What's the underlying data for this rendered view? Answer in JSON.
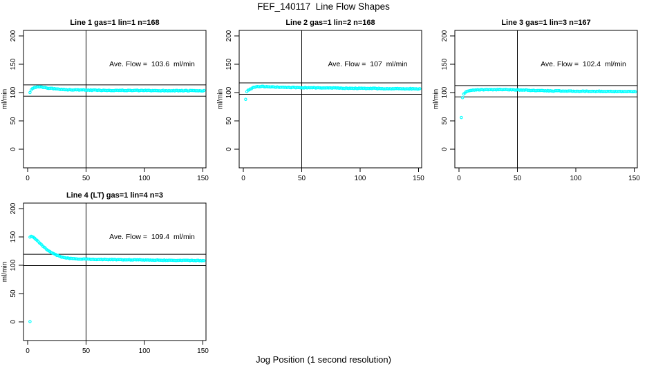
{
  "labels": {
    "title": "FEF_140117  Line Flow Shapes",
    "xlabel": "Jog Position (1 second resolution)",
    "ylabel": "ml/min"
  },
  "axes": {
    "x_ticks": [
      0,
      50,
      100,
      150
    ],
    "y_ticks": [
      0,
      50,
      100,
      150,
      200
    ],
    "xlim": [
      -3.5,
      152.5
    ],
    "ylim": [
      -33,
      210
    ],
    "vline_x": 50,
    "grid": false
  },
  "colors": {
    "marker": "#00ffff",
    "axis": "#000000",
    "background": "#ffffff",
    "text": "#000000"
  },
  "chart_data": [
    {
      "type": "scatter",
      "title": "Line 1 gas=1 lin=1 n=168",
      "annotation": "Ave. Flow =  103.6  ml/min",
      "ave_flow_ml_min": 103.6,
      "n": 168,
      "hlines": [
        113.6,
        93.6
      ],
      "vline_x": 50,
      "lead_points": [
        [
          2,
          100
        ]
      ],
      "series": {
        "x_start": 3,
        "x_end": 151,
        "x_step": 1,
        "jitter": 1.2,
        "keypoints": [
          [
            3,
            105
          ],
          [
            4,
            107.5
          ],
          [
            6,
            109.3
          ],
          [
            9,
            110
          ],
          [
            13,
            109.2
          ],
          [
            18,
            107.8
          ],
          [
            25,
            106.2
          ],
          [
            35,
            105
          ],
          [
            50,
            104.3
          ],
          [
            70,
            103.9
          ],
          [
            100,
            103.6
          ],
          [
            130,
            103.3
          ],
          [
            151,
            103.1
          ]
        ]
      }
    },
    {
      "type": "scatter",
      "title": "Line 2 gas=1 lin=2 n=168",
      "annotation": "Ave. Flow =  107  ml/min",
      "ave_flow_ml_min": 107,
      "n": 168,
      "hlines": [
        117,
        97
      ],
      "vline_x": 50,
      "lead_points": [
        [
          2,
          88
        ]
      ],
      "series": {
        "x_start": 3,
        "x_end": 151,
        "x_step": 1,
        "jitter": 1.2,
        "keypoints": [
          [
            3,
            101.5
          ],
          [
            4,
            104
          ],
          [
            6,
            106.5
          ],
          [
            9,
            109
          ],
          [
            13,
            110.5
          ],
          [
            18,
            110.6
          ],
          [
            25,
            110
          ],
          [
            35,
            109.2
          ],
          [
            50,
            108.6
          ],
          [
            70,
            108.1
          ],
          [
            100,
            107.4
          ],
          [
            130,
            106.9
          ],
          [
            151,
            106.6
          ]
        ]
      }
    },
    {
      "type": "scatter",
      "title": "Line 3 gas=1 lin=3 n=167",
      "annotation": "Ave. Flow =  102.4  ml/min",
      "ave_flow_ml_min": 102.4,
      "n": 167,
      "hlines": [
        112.4,
        92.4
      ],
      "vline_x": 50,
      "lead_points": [
        [
          2,
          56
        ],
        [
          3,
          91
        ]
      ],
      "series": {
        "x_start": 4,
        "x_end": 151,
        "x_step": 1,
        "jitter": 1.2,
        "keypoints": [
          [
            4,
            97
          ],
          [
            5,
            99.5
          ],
          [
            7,
            101.8
          ],
          [
            10,
            103.6
          ],
          [
            14,
            104.6
          ],
          [
            20,
            105.1
          ],
          [
            30,
            105.3
          ],
          [
            45,
            105
          ],
          [
            55,
            104.4
          ],
          [
            70,
            103.4
          ],
          [
            90,
            102.6
          ],
          [
            110,
            102.2
          ],
          [
            130,
            102
          ],
          [
            151,
            101.5
          ]
        ]
      }
    },
    {
      "type": "scatter",
      "title": "Line 4 (LT) gas=1 lin=4 n=3",
      "annotation": "Ave. Flow =  109.4  ml/min",
      "ave_flow_ml_min": 109.4,
      "n": 3,
      "hlines": [
        119.4,
        99.4
      ],
      "vline_x": 50,
      "lead_points": [
        [
          2,
          0.5
        ]
      ],
      "series": {
        "x_start": 2,
        "x_end": 151,
        "x_step": 1,
        "jitter": 1.0,
        "keypoints": [
          [
            2,
            150
          ],
          [
            3,
            151
          ],
          [
            4,
            150.5
          ],
          [
            5,
            149
          ],
          [
            7,
            146
          ],
          [
            9,
            142
          ],
          [
            11,
            138
          ],
          [
            13,
            134
          ],
          [
            15,
            130.5
          ],
          [
            17,
            127
          ],
          [
            19,
            124
          ],
          [
            21,
            121.5
          ],
          [
            24,
            118.5
          ],
          [
            27,
            116
          ],
          [
            30,
            114
          ],
          [
            34,
            112.5
          ],
          [
            40,
            111.3
          ],
          [
            50,
            110.7
          ],
          [
            70,
            110
          ],
          [
            100,
            109.3
          ],
          [
            130,
            108.6
          ],
          [
            151,
            108.2
          ]
        ]
      }
    }
  ]
}
